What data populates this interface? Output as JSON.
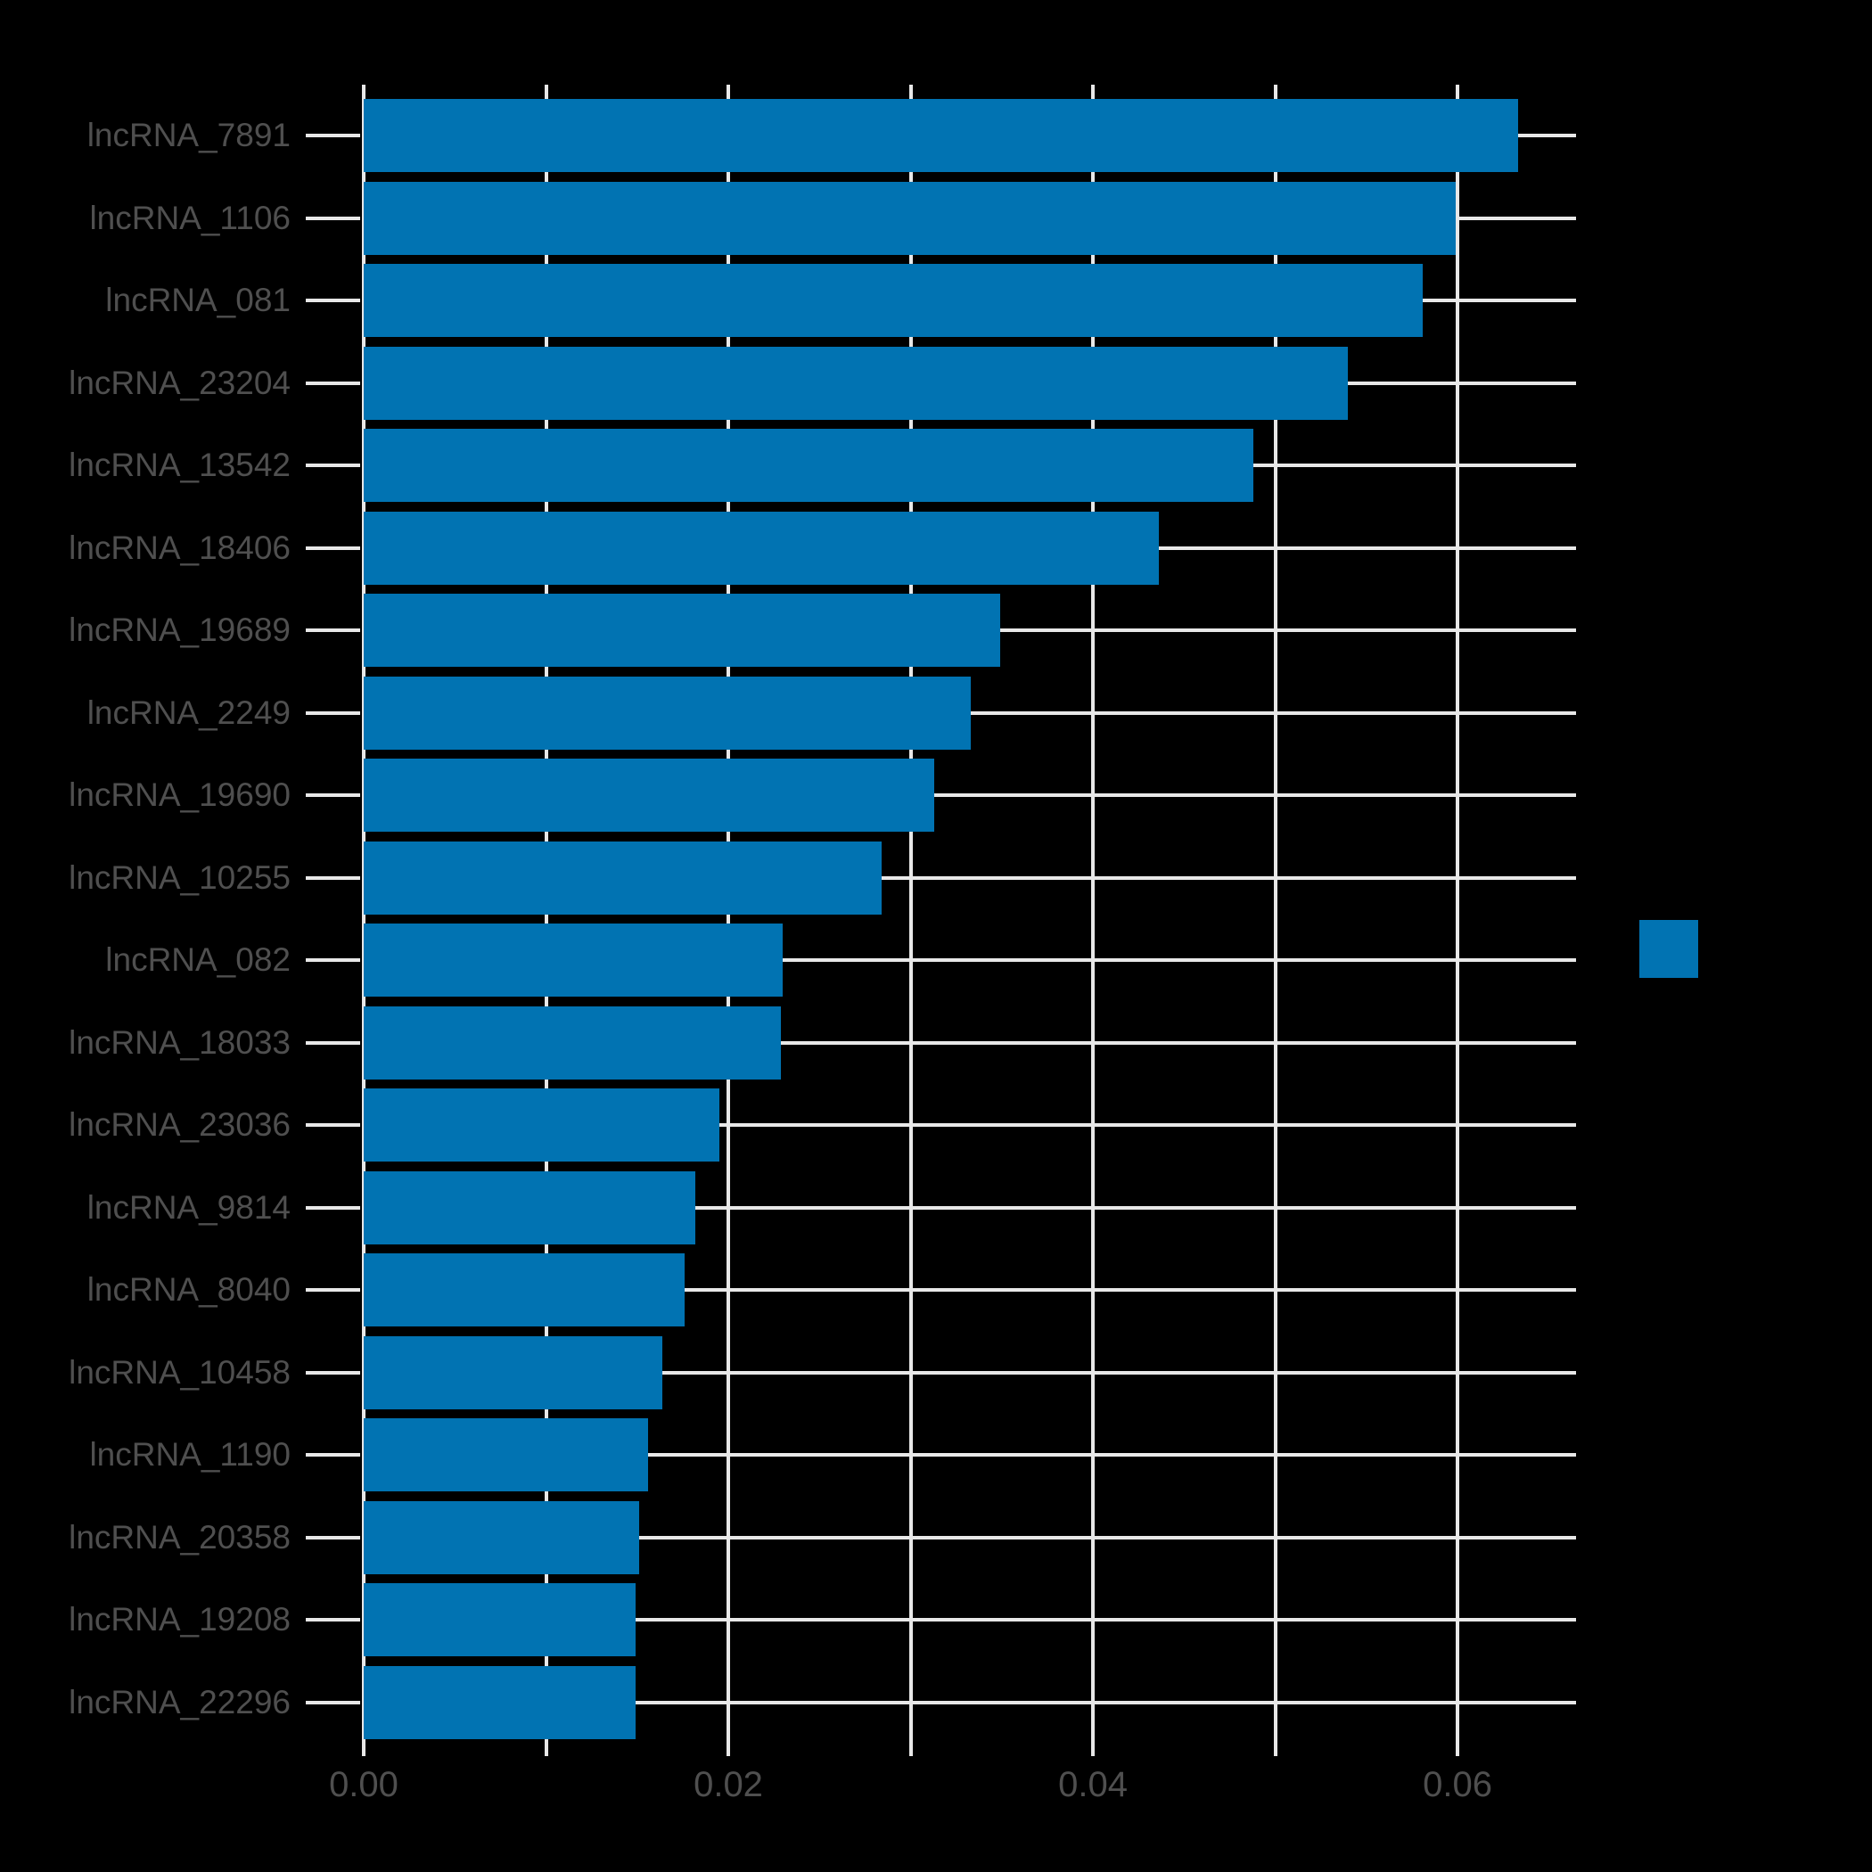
{
  "chart_data": {
    "type": "bar",
    "orientation": "horizontal",
    "title": "",
    "xlabel": "",
    "ylabel": "",
    "categories": [
      "lncRNA_7891",
      "lncRNA_1106",
      "lncRNA_081",
      "lncRNA_23204",
      "lncRNA_13542",
      "lncRNA_18406",
      "lncRNA_19689",
      "lncRNA_2249",
      "lncRNA_19690",
      "lncRNA_10255",
      "lncRNA_082",
      "lncRNA_18033",
      "lncRNA_23036",
      "lncRNA_9814",
      "lncRNA_8040",
      "lncRNA_10458",
      "lncRNA_1190",
      "lncRNA_20358",
      "lncRNA_19208",
      "lncRNA_22296"
    ],
    "values": [
      0.0633,
      0.0599,
      0.0581,
      0.054,
      0.0488,
      0.0436,
      0.0349,
      0.0333,
      0.0313,
      0.0284,
      0.023,
      0.0229,
      0.0195,
      0.0182,
      0.0176,
      0.0164,
      0.0156,
      0.0151,
      0.0149,
      0.0149
    ],
    "xlim": [
      0,
      0.0665
    ],
    "x_axis": {
      "ticks": [
        {
          "value": 0.0,
          "label": "0.00"
        },
        {
          "value": 0.01,
          "label": ""
        },
        {
          "value": 0.02,
          "label": "0.02"
        },
        {
          "value": 0.03,
          "label": ""
        },
        {
          "value": 0.04,
          "label": "0.04"
        },
        {
          "value": 0.05,
          "label": ""
        },
        {
          "value": 0.06,
          "label": "0.06"
        }
      ]
    },
    "grid": true,
    "legend": {
      "position": "right-center",
      "label": ""
    }
  },
  "colors": {
    "background": "#000000",
    "bar": "#0173b2",
    "grid": "#e8e8e8",
    "tick_text": "#4f4f4f"
  }
}
